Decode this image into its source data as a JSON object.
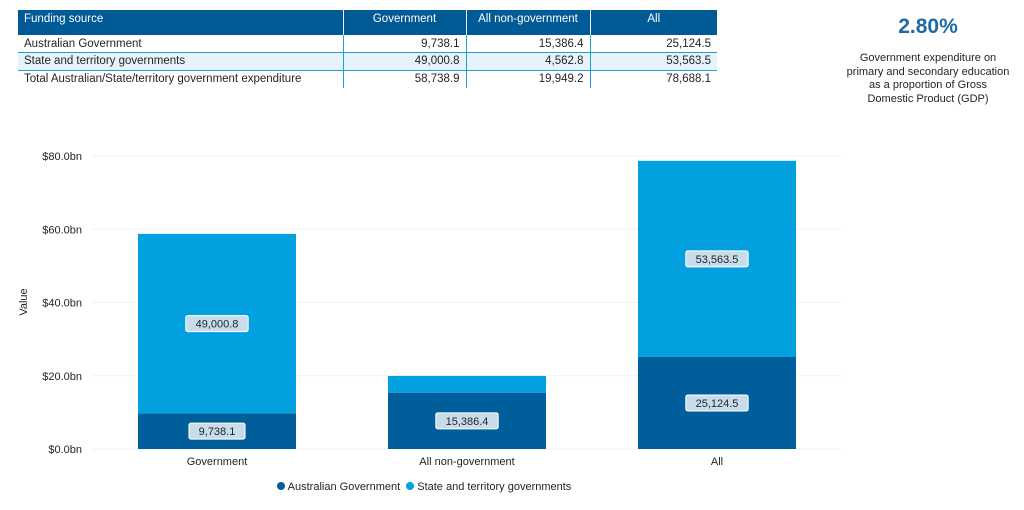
{
  "table": {
    "headers": [
      "Funding source",
      "Government",
      "All non-government",
      "All"
    ],
    "rows": [
      [
        "Australian Government",
        "9,738.1",
        "15,386.4",
        "25,124.5"
      ],
      [
        "State and territory governments",
        "49,000.8",
        "4,562.8",
        "53,563.5"
      ],
      [
        "Total Australian/State/territory government expenditure",
        "58,738.9",
        "19,949.2",
        "78,688.1"
      ]
    ]
  },
  "kpi": {
    "value": "2.80%",
    "caption": "Government expenditure on primary and secondary education as a proportion of Gross Domestic Product (GDP)"
  },
  "chart_data": {
    "type": "bar",
    "stacked": true,
    "categories": [
      "Government",
      "All non-government",
      "All"
    ],
    "series": [
      {
        "name": "Australian Government",
        "values": [
          9738.1,
          15386.4,
          25124.5
        ],
        "labels": [
          "9,738.1",
          "15,386.4",
          "25,124.5"
        ],
        "color": "#005f9a"
      },
      {
        "name": "State and territory governments",
        "values": [
          49000.8,
          4562.8,
          53563.5
        ],
        "labels": [
          "49,000.8",
          "",
          "53,563.5"
        ],
        "color": "#03a0e0"
      }
    ],
    "ylabel": "Value",
    "ylim": [
      0,
      80000
    ],
    "yticks": [
      {
        "value": 0,
        "label": "$0.0bn"
      },
      {
        "value": 20000,
        "label": "$20.0bn"
      },
      {
        "value": 40000,
        "label": "$40.0bn"
      },
      {
        "value": 60000,
        "label": "$60.0bn"
      },
      {
        "value": 80000,
        "label": "$80.0bn"
      }
    ],
    "grid": true,
    "legend": "bottom-center"
  }
}
